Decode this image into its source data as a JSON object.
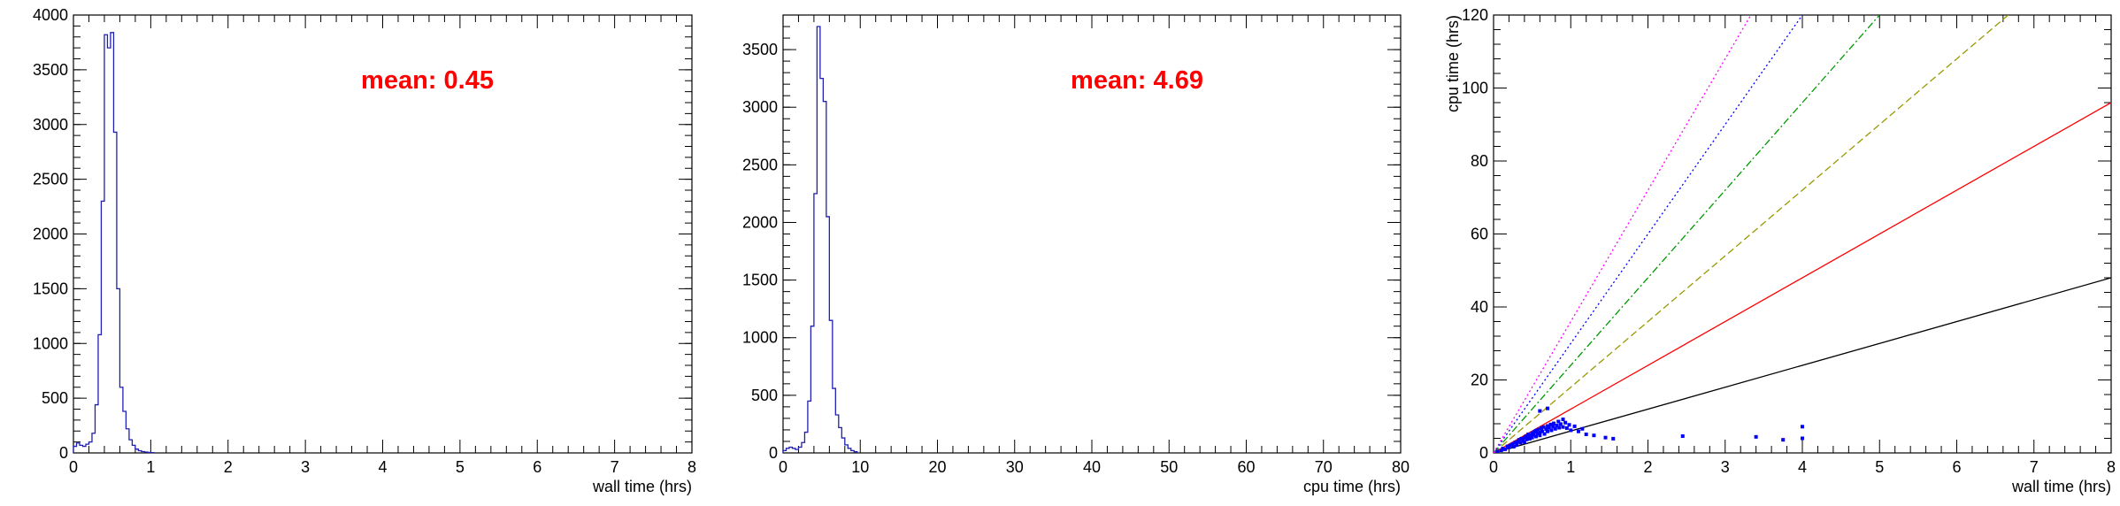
{
  "panels": [
    {
      "chart_data": {
        "type": "histogram",
        "xlabel": "wall time (hrs)",
        "ylabel": "",
        "xlim": [
          0,
          8
        ],
        "ylim": [
          0,
          4000
        ],
        "x_ticks": [
          0,
          1,
          2,
          3,
          4,
          5,
          6,
          7,
          8
        ],
        "y_ticks": [
          0,
          500,
          1000,
          1500,
          2000,
          2500,
          3000,
          3500,
          4000
        ],
        "bin_width": 0.04,
        "bins": [
          [
            0.0,
            60
          ],
          [
            0.04,
            90
          ],
          [
            0.08,
            70
          ],
          [
            0.12,
            60
          ],
          [
            0.16,
            80
          ],
          [
            0.2,
            100
          ],
          [
            0.24,
            180
          ],
          [
            0.28,
            440
          ],
          [
            0.32,
            1080
          ],
          [
            0.36,
            2300
          ],
          [
            0.4,
            3820
          ],
          [
            0.44,
            3700
          ],
          [
            0.48,
            3840
          ],
          [
            0.52,
            2930
          ],
          [
            0.56,
            1500
          ],
          [
            0.6,
            600
          ],
          [
            0.64,
            380
          ],
          [
            0.68,
            220
          ],
          [
            0.72,
            120
          ],
          [
            0.76,
            70
          ],
          [
            0.8,
            35
          ],
          [
            0.84,
            20
          ],
          [
            0.88,
            12
          ],
          [
            0.92,
            8
          ],
          [
            0.96,
            5
          ],
          [
            1.0,
            3
          ]
        ],
        "annotation": "mean: 0.45",
        "series_color": "#1f1fb4",
        "annotation_color": "#ff0000",
        "grid": false
      }
    },
    {
      "chart_data": {
        "type": "histogram",
        "xlabel": "cpu time (hrs)",
        "ylabel": "",
        "xlim": [
          0,
          80
        ],
        "ylim": [
          0,
          3800
        ],
        "x_ticks": [
          0,
          10,
          20,
          30,
          40,
          50,
          60,
          70,
          80
        ],
        "y_ticks": [
          0,
          500,
          1000,
          1500,
          2000,
          2500,
          3000,
          3500
        ],
        "bin_width": 0.4,
        "bins": [
          [
            0.0,
            20
          ],
          [
            0.4,
            40
          ],
          [
            0.8,
            50
          ],
          [
            1.2,
            40
          ],
          [
            1.6,
            30
          ],
          [
            2.0,
            50
          ],
          [
            2.4,
            90
          ],
          [
            2.8,
            180
          ],
          [
            3.2,
            450
          ],
          [
            3.6,
            1100
          ],
          [
            4.0,
            2250
          ],
          [
            4.4,
            3700
          ],
          [
            4.8,
            3250
          ],
          [
            5.2,
            3050
          ],
          [
            5.6,
            2050
          ],
          [
            6.0,
            1150
          ],
          [
            6.4,
            560
          ],
          [
            6.8,
            330
          ],
          [
            7.2,
            220
          ],
          [
            7.6,
            130
          ],
          [
            8.0,
            70
          ],
          [
            8.4,
            40
          ],
          [
            8.8,
            20
          ],
          [
            9.2,
            10
          ]
        ],
        "annotation": "mean: 4.69",
        "series_color": "#1f1fb4",
        "annotation_color": "#ff0000",
        "grid": false
      }
    },
    {
      "chart_data": {
        "type": "scatter",
        "xlabel": "wall time (hrs)",
        "ylabel": "cpu time (hrs)",
        "xlim": [
          0,
          8
        ],
        "ylim": [
          0,
          120
        ],
        "x_ticks": [
          0,
          1,
          2,
          3,
          4,
          5,
          6,
          7,
          8
        ],
        "y_ticks": [
          0,
          20,
          40,
          60,
          80,
          100,
          120
        ],
        "reference_lines": [
          {
            "slope": 6,
            "color": "#000000",
            "style": "solid"
          },
          {
            "slope": 12,
            "color": "#ff0000",
            "style": "solid"
          },
          {
            "slope": 18,
            "color": "#999900",
            "style": "dashed"
          },
          {
            "slope": 24,
            "color": "#009900",
            "style": "dashdot"
          },
          {
            "slope": 30,
            "color": "#0000ff",
            "style": "dotted"
          },
          {
            "slope": 36,
            "color": "#ff00ff",
            "style": "dotted"
          }
        ],
        "series_color": "#0000ff",
        "points": [
          [
            0.05,
            0.4
          ],
          [
            0.1,
            0.7
          ],
          [
            0.12,
            1.2
          ],
          [
            0.15,
            1.0
          ],
          [
            0.18,
            1.8
          ],
          [
            0.2,
            1.5
          ],
          [
            0.22,
            2.1
          ],
          [
            0.25,
            2.4
          ],
          [
            0.26,
            1.7
          ],
          [
            0.28,
            2.9
          ],
          [
            0.3,
            2.2
          ],
          [
            0.32,
            3.1
          ],
          [
            0.33,
            3.6
          ],
          [
            0.35,
            2.8
          ],
          [
            0.36,
            3.9
          ],
          [
            0.38,
            3.3
          ],
          [
            0.4,
            4.2
          ],
          [
            0.4,
            3.0
          ],
          [
            0.42,
            4.6
          ],
          [
            0.43,
            3.7
          ],
          [
            0.45,
            4.4
          ],
          [
            0.45,
            5.1
          ],
          [
            0.47,
            3.9
          ],
          [
            0.48,
            4.8
          ],
          [
            0.5,
            5.4
          ],
          [
            0.5,
            4.2
          ],
          [
            0.52,
            5.0
          ],
          [
            0.53,
            5.8
          ],
          [
            0.55,
            4.5
          ],
          [
            0.55,
            6.1
          ],
          [
            0.57,
            5.3
          ],
          [
            0.58,
            6.4
          ],
          [
            0.6,
            5.6
          ],
          [
            0.6,
            4.8
          ],
          [
            0.62,
            6.8
          ],
          [
            0.63,
            5.9
          ],
          [
            0.65,
            7.1
          ],
          [
            0.66,
            5.2
          ],
          [
            0.68,
            6.5
          ],
          [
            0.7,
            7.4
          ],
          [
            0.7,
            5.9
          ],
          [
            0.72,
            6.9
          ],
          [
            0.74,
            7.8
          ],
          [
            0.75,
            6.2
          ],
          [
            0.77,
            7.2
          ],
          [
            0.78,
            8.1
          ],
          [
            0.8,
            6.6
          ],
          [
            0.82,
            7.5
          ],
          [
            0.84,
            8.6
          ],
          [
            0.85,
            6.9
          ],
          [
            0.87,
            7.9
          ],
          [
            0.9,
            9.2
          ],
          [
            0.9,
            7.1
          ],
          [
            0.93,
            8.3
          ],
          [
            0.95,
            6.8
          ],
          [
            0.98,
            7.7
          ],
          [
            1.0,
            6.2
          ],
          [
            1.05,
            7.3
          ],
          [
            1.1,
            5.9
          ],
          [
            1.15,
            6.6
          ],
          [
            1.2,
            5.1
          ],
          [
            1.3,
            4.8
          ],
          [
            1.45,
            4.2
          ],
          [
            1.55,
            3.9
          ],
          [
            0.6,
            11.5
          ],
          [
            0.7,
            12.2
          ],
          [
            2.45,
            4.6
          ],
          [
            3.4,
            4.4
          ],
          [
            3.75,
            3.6
          ],
          [
            4.0,
            7.2
          ],
          [
            4.0,
            4.0
          ]
        ],
        "grid": false
      }
    }
  ]
}
